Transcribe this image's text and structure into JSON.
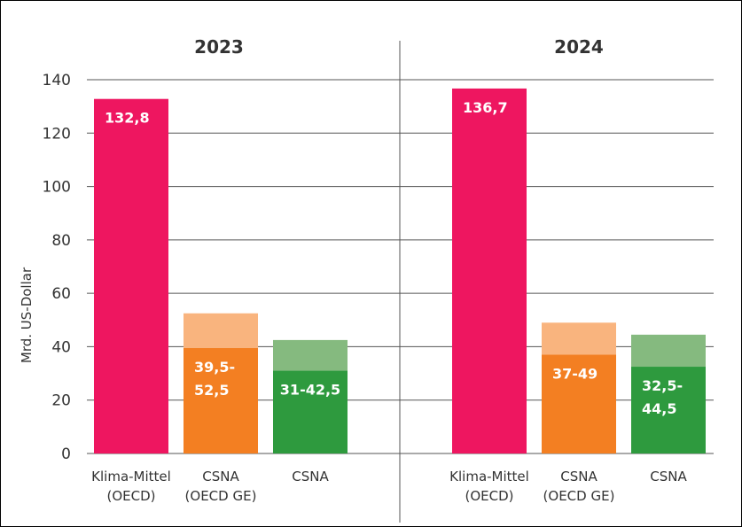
{
  "chart_data": {
    "type": "bar",
    "ylabel": "Mrd. US-Dollar",
    "ylim": [
      0,
      140
    ],
    "yticks": [
      0,
      20,
      40,
      60,
      80,
      100,
      120,
      140
    ],
    "grid": true,
    "panels": [
      {
        "title": "2023",
        "bars": [
          {
            "category": [
              "Klima-Mittel",
              "(OECD)"
            ],
            "low": 132.8,
            "high": 132.8,
            "label": [
              "132,8"
            ],
            "color": "#ee1660",
            "light_color": "#ee1660"
          },
          {
            "category": [
              "CSNA",
              "(OECD GE)"
            ],
            "low": 39.5,
            "high": 52.5,
            "label": [
              "39,5-",
              "52,5"
            ],
            "color": "#f37f22",
            "light_color": "#f9b47e"
          },
          {
            "category": [
              "CSNA"
            ],
            "low": 31,
            "high": 42.5,
            "label": [
              "31-42,5"
            ],
            "color": "#2e9a3e",
            "light_color": "#85ba7f"
          }
        ]
      },
      {
        "title": "2024",
        "bars": [
          {
            "category": [
              "Klima-Mittel",
              "(OECD)"
            ],
            "low": 136.7,
            "high": 136.7,
            "label": [
              "136,7"
            ],
            "color": "#ee1660",
            "light_color": "#ee1660"
          },
          {
            "category": [
              "CSNA",
              "(OECD GE)"
            ],
            "low": 37,
            "high": 49,
            "label": [
              "37-49"
            ],
            "color": "#f37f22",
            "light_color": "#f9b47e"
          },
          {
            "category": [
              "CSNA"
            ],
            "low": 32.5,
            "high": 44.5,
            "label": [
              "32,5-",
              "44,5"
            ],
            "color": "#2e9a3e",
            "light_color": "#85ba7f"
          }
        ]
      }
    ]
  }
}
